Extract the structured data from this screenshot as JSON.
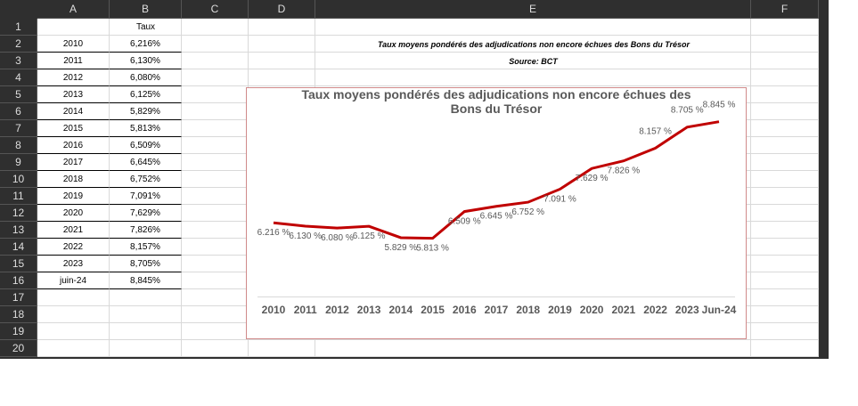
{
  "sheet": {
    "columns": [
      "A",
      "B",
      "C",
      "D",
      "E",
      "F"
    ],
    "rows": [
      "1",
      "2",
      "3",
      "4",
      "5",
      "6",
      "7",
      "8",
      "9",
      "10",
      "11",
      "12",
      "13",
      "14",
      "15",
      "16",
      "17",
      "18",
      "19",
      "20"
    ],
    "table": {
      "header": "Taux",
      "rows": [
        [
          "2010",
          "6,216%"
        ],
        [
          "2011",
          "6,130%"
        ],
        [
          "2012",
          "6,080%"
        ],
        [
          "2013",
          "6,125%"
        ],
        [
          "2014",
          "5,829%"
        ],
        [
          "2015",
          "5,813%"
        ],
        [
          "2016",
          "6,509%"
        ],
        [
          "2017",
          "6,645%"
        ],
        [
          "2018",
          "6,752%"
        ],
        [
          "2019",
          "7,091%"
        ],
        [
          "2020",
          "7,629%"
        ],
        [
          "2021",
          "7,826%"
        ],
        [
          "2022",
          "8,157%"
        ],
        [
          "2023",
          "8,705%"
        ],
        [
          "juin-24",
          "8,845%"
        ]
      ]
    },
    "note_title": "Taux moyens pondérés des adjudications non encore échues des Bons du Trésor",
    "note_source": "Source: BCT"
  },
  "chart_data": {
    "type": "line",
    "title": "Taux moyens pondérés des adjudications non encore échues des Bons du Trésor",
    "categories": [
      "2010",
      "2011",
      "2012",
      "2013",
      "2014",
      "2015",
      "2016",
      "2017",
      "2018",
      "2019",
      "2020",
      "2021",
      "2022",
      "2023",
      "Jun-24"
    ],
    "values": [
      6.216,
      6.13,
      6.08,
      6.125,
      5.829,
      5.813,
      6.509,
      6.645,
      6.752,
      7.091,
      7.629,
      7.826,
      8.157,
      8.705,
      8.845
    ],
    "value_labels": [
      "6.216 %",
      "6.130 %",
      "6.080 %",
      "6.125 %",
      "5.829 %",
      "5.813 %",
      "6.509 %",
      "6.645 %",
      "6.752 %",
      "7.091 %",
      "7.629 %",
      "7.826 %",
      "8.157 %",
      "8.705 %",
      "8.845 %"
    ],
    "color": "#c00000",
    "ylim": [
      4.3,
      9
    ]
  }
}
